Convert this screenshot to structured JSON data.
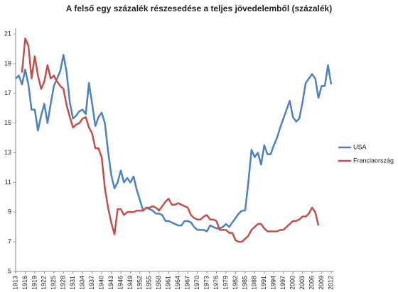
{
  "chart_data": {
    "type": "line",
    "title": "A felső egy százalék részesedése a teljes jövedelemből (százalék)",
    "x": [
      1913,
      1914,
      1915,
      1916,
      1917,
      1918,
      1919,
      1920,
      1921,
      1922,
      1923,
      1924,
      1925,
      1926,
      1927,
      1928,
      1929,
      1930,
      1931,
      1932,
      1933,
      1934,
      1935,
      1936,
      1937,
      1938,
      1939,
      1940,
      1941,
      1942,
      1943,
      1944,
      1945,
      1946,
      1947,
      1948,
      1949,
      1950,
      1951,
      1952,
      1953,
      1954,
      1955,
      1956,
      1957,
      1958,
      1959,
      1960,
      1961,
      1962,
      1963,
      1964,
      1965,
      1966,
      1967,
      1968,
      1969,
      1970,
      1971,
      1972,
      1973,
      1974,
      1975,
      1976,
      1977,
      1978,
      1979,
      1980,
      1981,
      1982,
      1983,
      1984,
      1985,
      1986,
      1987,
      1988,
      1989,
      1990,
      1991,
      1992,
      1993,
      1994,
      1995,
      1996,
      1997,
      1998,
      1999,
      2000,
      2001,
      2002,
      2003,
      2004,
      2005,
      2006,
      2007,
      2008,
      2009,
      2010,
      2011,
      2012
    ],
    "series": [
      {
        "name": "USA",
        "color": "#4f81bd",
        "values": [
          18.0,
          18.2,
          17.6,
          18.6,
          17.6,
          15.9,
          15.9,
          14.5,
          15.5,
          16.3,
          15.0,
          16.3,
          17.5,
          18.0,
          18.5,
          19.6,
          18.4,
          16.4,
          15.3,
          15.5,
          15.8,
          15.9,
          15.6,
          17.7,
          16.3,
          14.8,
          15.4,
          15.7,
          15.0,
          13.1,
          11.5,
          10.6,
          11.0,
          11.8,
          11.0,
          11.3,
          11.0,
          11.4,
          10.5,
          9.8,
          9.1,
          9.3,
          9.2,
          9.1,
          8.9,
          8.9,
          8.8,
          8.4,
          8.4,
          8.3,
          8.2,
          8.1,
          8.1,
          8.4,
          8.4,
          8.3,
          8.0,
          7.8,
          7.8,
          7.8,
          7.7,
          8.1,
          8.0,
          7.9,
          7.9,
          8.0,
          8.2,
          8.0,
          8.3,
          8.6,
          8.9,
          9.1,
          9.1,
          11.0,
          13.2,
          12.7,
          13.0,
          12.2,
          13.5,
          12.9,
          12.9,
          13.5,
          14.0,
          14.7,
          15.3,
          15.9,
          16.5,
          15.4,
          15.1,
          15.3,
          16.4,
          17.7,
          18.0,
          18.3,
          18.0,
          16.7,
          17.5,
          17.5,
          18.9,
          17.6
        ]
      },
      {
        "name": "Franciaország",
        "color": "#c0504d",
        "values": [
          null,
          null,
          18.4,
          20.7,
          20.2,
          18.0,
          19.5,
          18.2,
          17.3,
          17.8,
          18.9,
          18.0,
          18.2,
          17.8,
          17.5,
          17.3,
          16.2,
          15.4,
          14.7,
          14.9,
          15.0,
          15.3,
          15.4,
          14.7,
          14.3,
          13.3,
          13.3,
          12.7,
          10.6,
          9.3,
          8.3,
          7.5,
          9.2,
          9.2,
          8.8,
          9.0,
          9.0,
          9.0,
          9.1,
          9.1,
          9.1,
          9.3,
          9.3,
          9.4,
          9.3,
          9.1,
          9.4,
          9.7,
          9.9,
          9.5,
          9.5,
          9.6,
          9.5,
          9.4,
          9.3,
          8.8,
          8.6,
          8.5,
          8.5,
          8.7,
          8.8,
          8.5,
          8.5,
          8.4,
          7.8,
          7.8,
          7.8,
          7.6,
          7.6,
          7.1,
          7.0,
          7.0,
          7.2,
          7.4,
          7.8,
          8.0,
          8.2,
          8.2,
          7.9,
          7.7,
          7.7,
          7.7,
          7.7,
          7.8,
          7.8,
          8.0,
          8.2,
          8.4,
          8.4,
          8.5,
          8.7,
          8.7,
          8.9,
          9.3,
          9.0,
          8.1,
          null,
          null,
          null,
          null
        ]
      }
    ],
    "xlim": [
      1913,
      2012
    ],
    "xticks": [
      1913,
      1916,
      1919,
      1922,
      1925,
      1928,
      1931,
      1934,
      1937,
      1940,
      1943,
      1946,
      1949,
      1952,
      1955,
      1958,
      1961,
      1964,
      1967,
      1970,
      1973,
      1976,
      1979,
      1982,
      1985,
      1988,
      1991,
      1994,
      1997,
      2000,
      2003,
      2006,
      2009,
      2012
    ],
    "ylim": [
      5,
      21
    ],
    "yticks": [
      5,
      7,
      9,
      11,
      13,
      15,
      17,
      19,
      21
    ],
    "grid": false,
    "legend": "right"
  }
}
